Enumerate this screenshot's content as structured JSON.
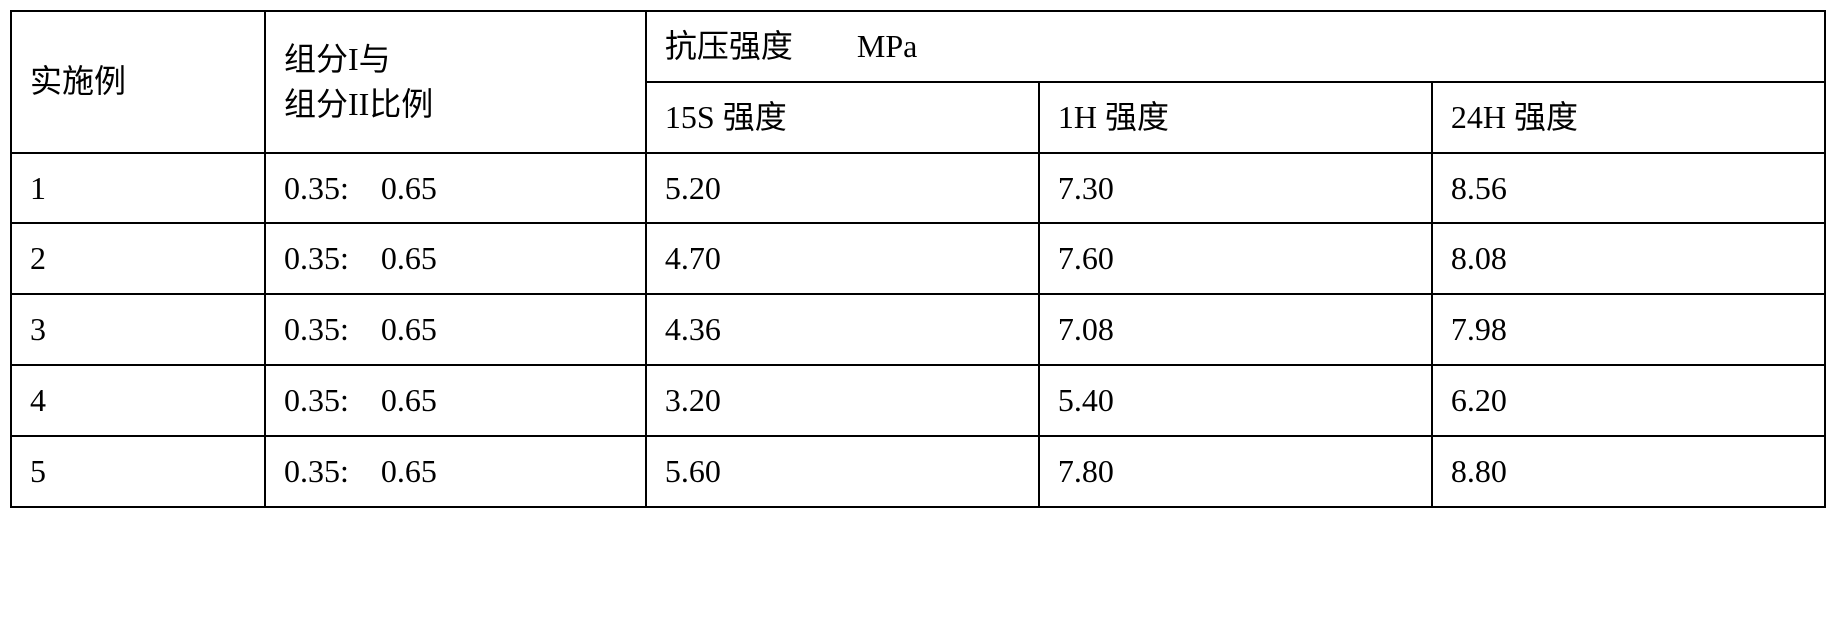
{
  "table": {
    "headers": {
      "example": "实施例",
      "ratio_line1": "组分I与",
      "ratio_line2": "组分II比例",
      "strength_group": "抗压强度　　MPa",
      "strength_15s": "15S 强度",
      "strength_1h": "1H 强度",
      "strength_24h": "24H 强度"
    },
    "rows": [
      {
        "example": "1",
        "ratio": "0.35:　0.65",
        "s15": "5.20",
        "h1": "7.30",
        "h24": "8.56"
      },
      {
        "example": "2",
        "ratio": "0.35:　0.65",
        "s15": "4.70",
        "h1": "7.60",
        "h24": "8.08"
      },
      {
        "example": "3",
        "ratio": "0.35:　0.65",
        "s15": "4.36",
        "h1": "7.08",
        "h24": "7.98"
      },
      {
        "example": "4",
        "ratio": "0.35:　0.65",
        "s15": "3.20",
        "h1": "5.40",
        "h24": "6.20"
      },
      {
        "example": "5",
        "ratio": "0.35:　0.65",
        "s15": "5.60",
        "h1": "7.80",
        "h24": "8.80"
      }
    ],
    "styling": {
      "border_color": "#000000",
      "border_width": 2,
      "background_color": "#ffffff",
      "font_size": 32,
      "font_family": "SimSun",
      "cell_padding_v": 12,
      "cell_padding_h": 18
    }
  }
}
